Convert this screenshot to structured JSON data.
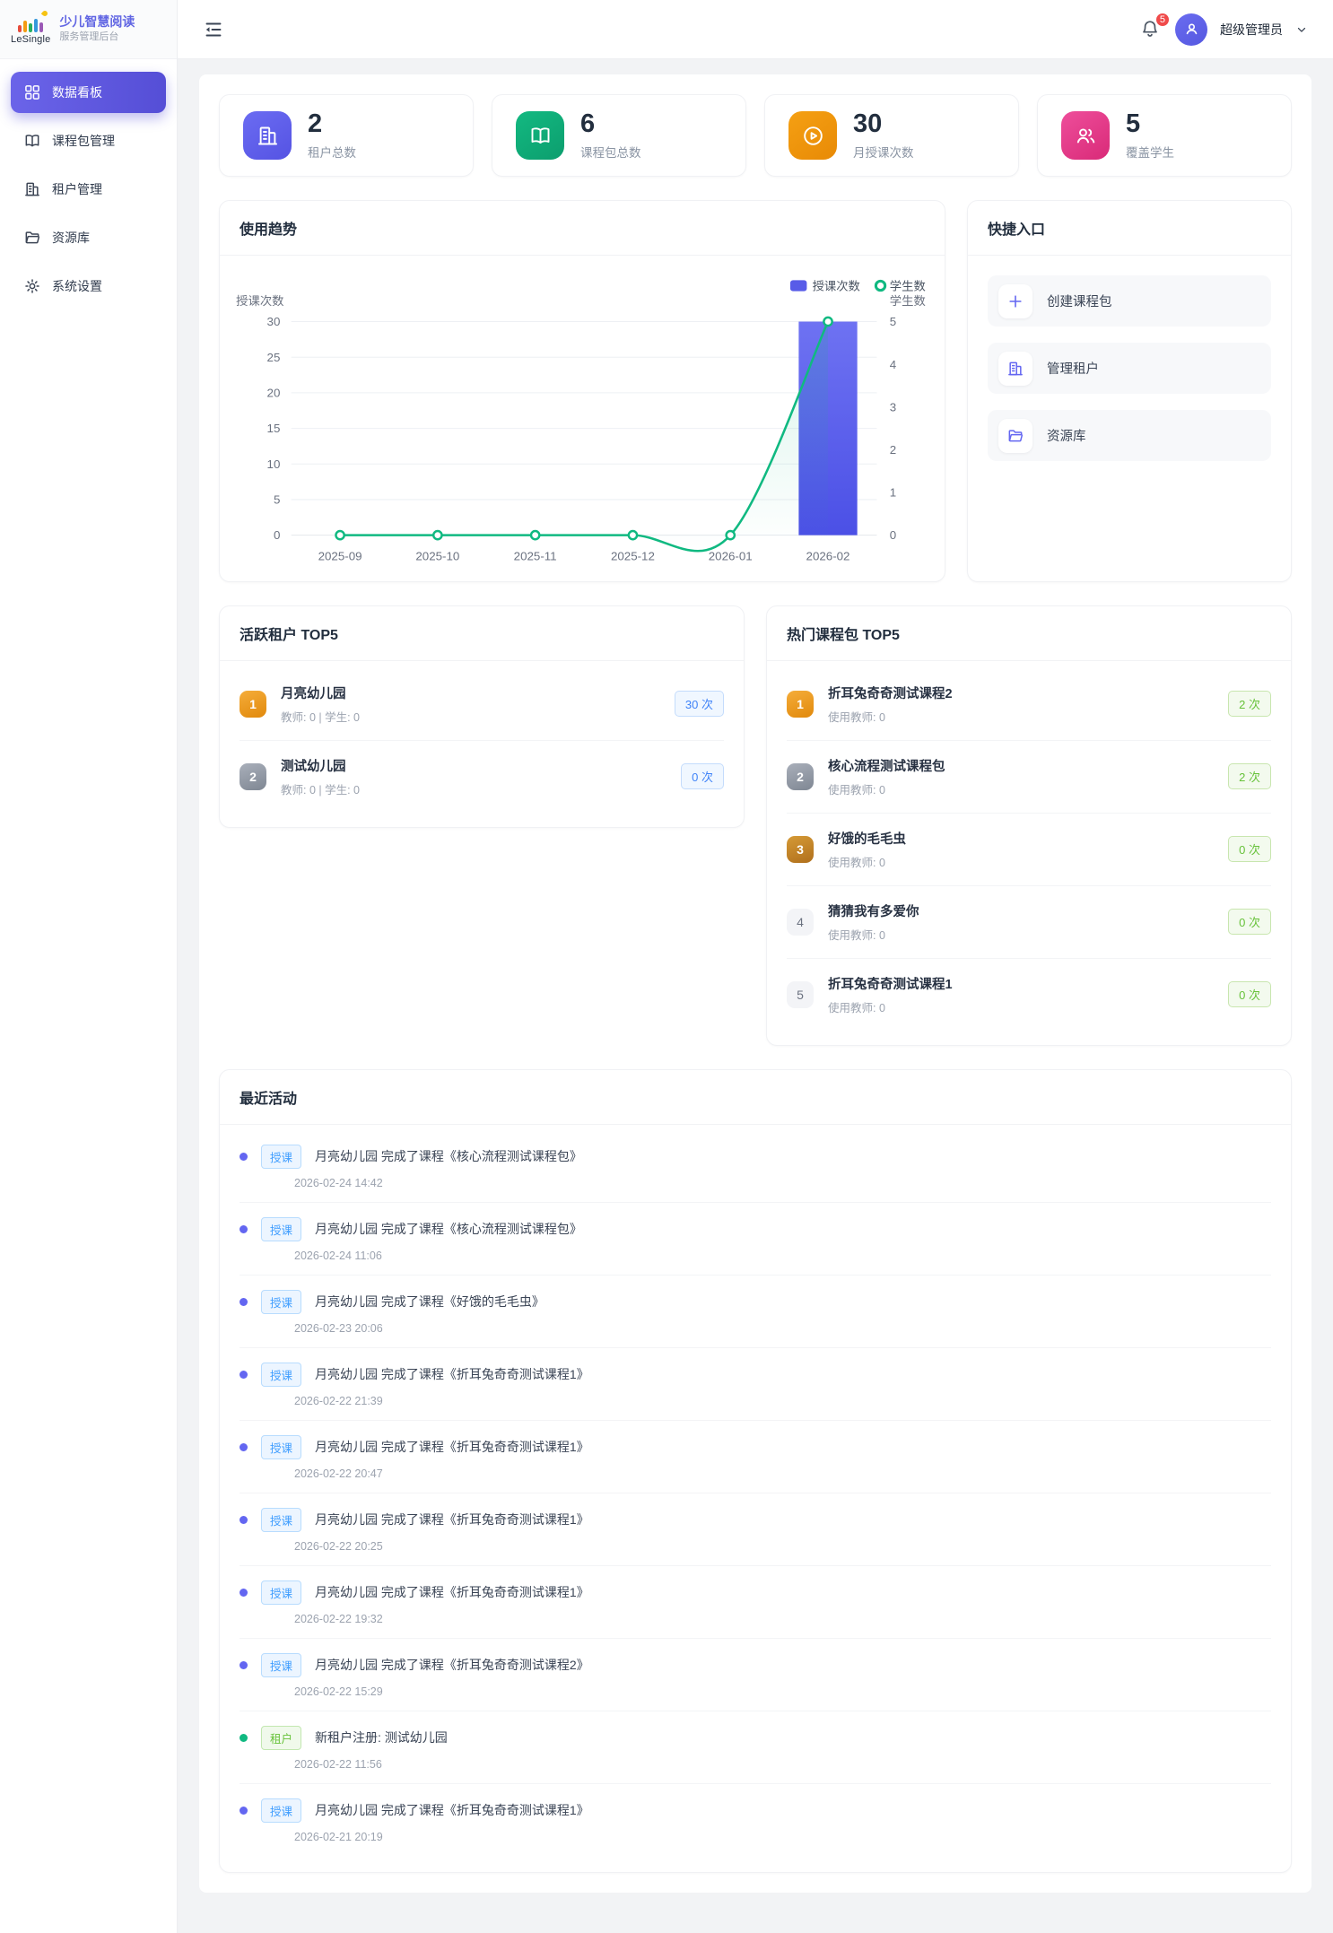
{
  "sidebar": {
    "logo_text": "LeSingle",
    "title": "少儿智慧阅读",
    "subtitle": "服务管理后台",
    "items": [
      {
        "label": "数据看板",
        "icon": "dashboard-icon",
        "active": true
      },
      {
        "label": "课程包管理",
        "icon": "book-icon",
        "active": false
      },
      {
        "label": "租户管理",
        "icon": "building-icon",
        "active": false
      },
      {
        "label": "资源库",
        "icon": "folder-icon",
        "active": false
      },
      {
        "label": "系统设置",
        "icon": "gear-icon",
        "active": false
      }
    ]
  },
  "header": {
    "notification_count": "5",
    "user_name": "超级管理员"
  },
  "stats": [
    {
      "value": "2",
      "label": "租户总数",
      "icon": "building-icon",
      "color": "#6366f1"
    },
    {
      "value": "6",
      "label": "课程包总数",
      "icon": "book-icon",
      "color": "#10b981"
    },
    {
      "value": "30",
      "label": "月授课次数",
      "icon": "play-icon",
      "color": "#f59e0b"
    },
    {
      "value": "5",
      "label": "覆盖学生",
      "icon": "users-icon",
      "color": "#ec4899"
    }
  ],
  "usage_trend": {
    "title": "使用趋势"
  },
  "chart_data": {
    "type": "bar",
    "categories": [
      "2025-09",
      "2025-10",
      "2025-11",
      "2025-12",
      "2026-01",
      "2026-02"
    ],
    "series": [
      {
        "name": "授课次数",
        "type": "bar",
        "axis": "left",
        "values": [
          0,
          0,
          0,
          0,
          0,
          30
        ],
        "color": "#585ce8"
      },
      {
        "name": "学生数",
        "type": "line",
        "axis": "right",
        "values": [
          0,
          0,
          0,
          0,
          0,
          5
        ],
        "color": "#10b981"
      }
    ],
    "left_axis": {
      "name": "授课次数",
      "min": 0,
      "max": 30,
      "step": 5
    },
    "right_axis": {
      "name": "学生数",
      "min": 0,
      "max": 5,
      "step": 1
    },
    "legend": [
      "授课次数",
      "学生数"
    ],
    "legend_position": "top-right",
    "grid": true
  },
  "quick_entry": {
    "title": "快捷入口",
    "items": [
      {
        "label": "创建课程包",
        "icon": "plus-icon"
      },
      {
        "label": "管理租户",
        "icon": "building-icon"
      },
      {
        "label": "资源库",
        "icon": "folder-icon"
      }
    ]
  },
  "active_tenants": {
    "title": "活跃租户 TOP5",
    "items": [
      {
        "rank": "1",
        "name": "月亮幼儿园",
        "meta": "教师: 0 | 学生: 0",
        "count": "30 次"
      },
      {
        "rank": "2",
        "name": "测试幼儿园",
        "meta": "教师: 0 | 学生: 0",
        "count": "0 次"
      }
    ]
  },
  "hot_packages": {
    "title": "热门课程包 TOP5",
    "items": [
      {
        "rank": "1",
        "name": "折耳兔奇奇测试课程2",
        "meta": "使用教师: 0",
        "count": "2 次"
      },
      {
        "rank": "2",
        "name": "核心流程测试课程包",
        "meta": "使用教师: 0",
        "count": "2 次"
      },
      {
        "rank": "3",
        "name": "好饿的毛毛虫",
        "meta": "使用教师: 0",
        "count": "0 次"
      },
      {
        "rank": "4",
        "name": "猜猜我有多爱你",
        "meta": "使用教师: 0",
        "count": "0 次"
      },
      {
        "rank": "5",
        "name": "折耳兔奇奇测试课程1",
        "meta": "使用教师: 0",
        "count": "0 次"
      }
    ]
  },
  "recent_activities": {
    "title": "最近活动",
    "items": [
      {
        "type": "授课",
        "text": "月亮幼儿园 完成了课程《核心流程测试课程包》",
        "time": "2026-02-24 14:42"
      },
      {
        "type": "授课",
        "text": "月亮幼儿园 完成了课程《核心流程测试课程包》",
        "time": "2026-02-24 11:06"
      },
      {
        "type": "授课",
        "text": "月亮幼儿园 完成了课程《好饿的毛毛虫》",
        "time": "2026-02-23 20:06"
      },
      {
        "type": "授课",
        "text": "月亮幼儿园 完成了课程《折耳兔奇奇测试课程1》",
        "time": "2026-02-22 21:39"
      },
      {
        "type": "授课",
        "text": "月亮幼儿园 完成了课程《折耳兔奇奇测试课程1》",
        "time": "2026-02-22 20:47"
      },
      {
        "type": "授课",
        "text": "月亮幼儿园 完成了课程《折耳兔奇奇测试课程1》",
        "time": "2026-02-22 20:25"
      },
      {
        "type": "授课",
        "text": "月亮幼儿园 完成了课程《折耳兔奇奇测试课程1》",
        "time": "2026-02-22 19:32"
      },
      {
        "type": "授课",
        "text": "月亮幼儿园 完成了课程《折耳兔奇奇测试课程2》",
        "time": "2026-02-22 15:29"
      },
      {
        "type": "租户",
        "text": "新租户注册: 测试幼儿园",
        "time": "2026-02-22 11:56"
      },
      {
        "type": "授课",
        "text": "月亮幼儿园 完成了课程《折耳兔奇奇测试课程1》",
        "time": "2026-02-21 20:19"
      }
    ]
  }
}
